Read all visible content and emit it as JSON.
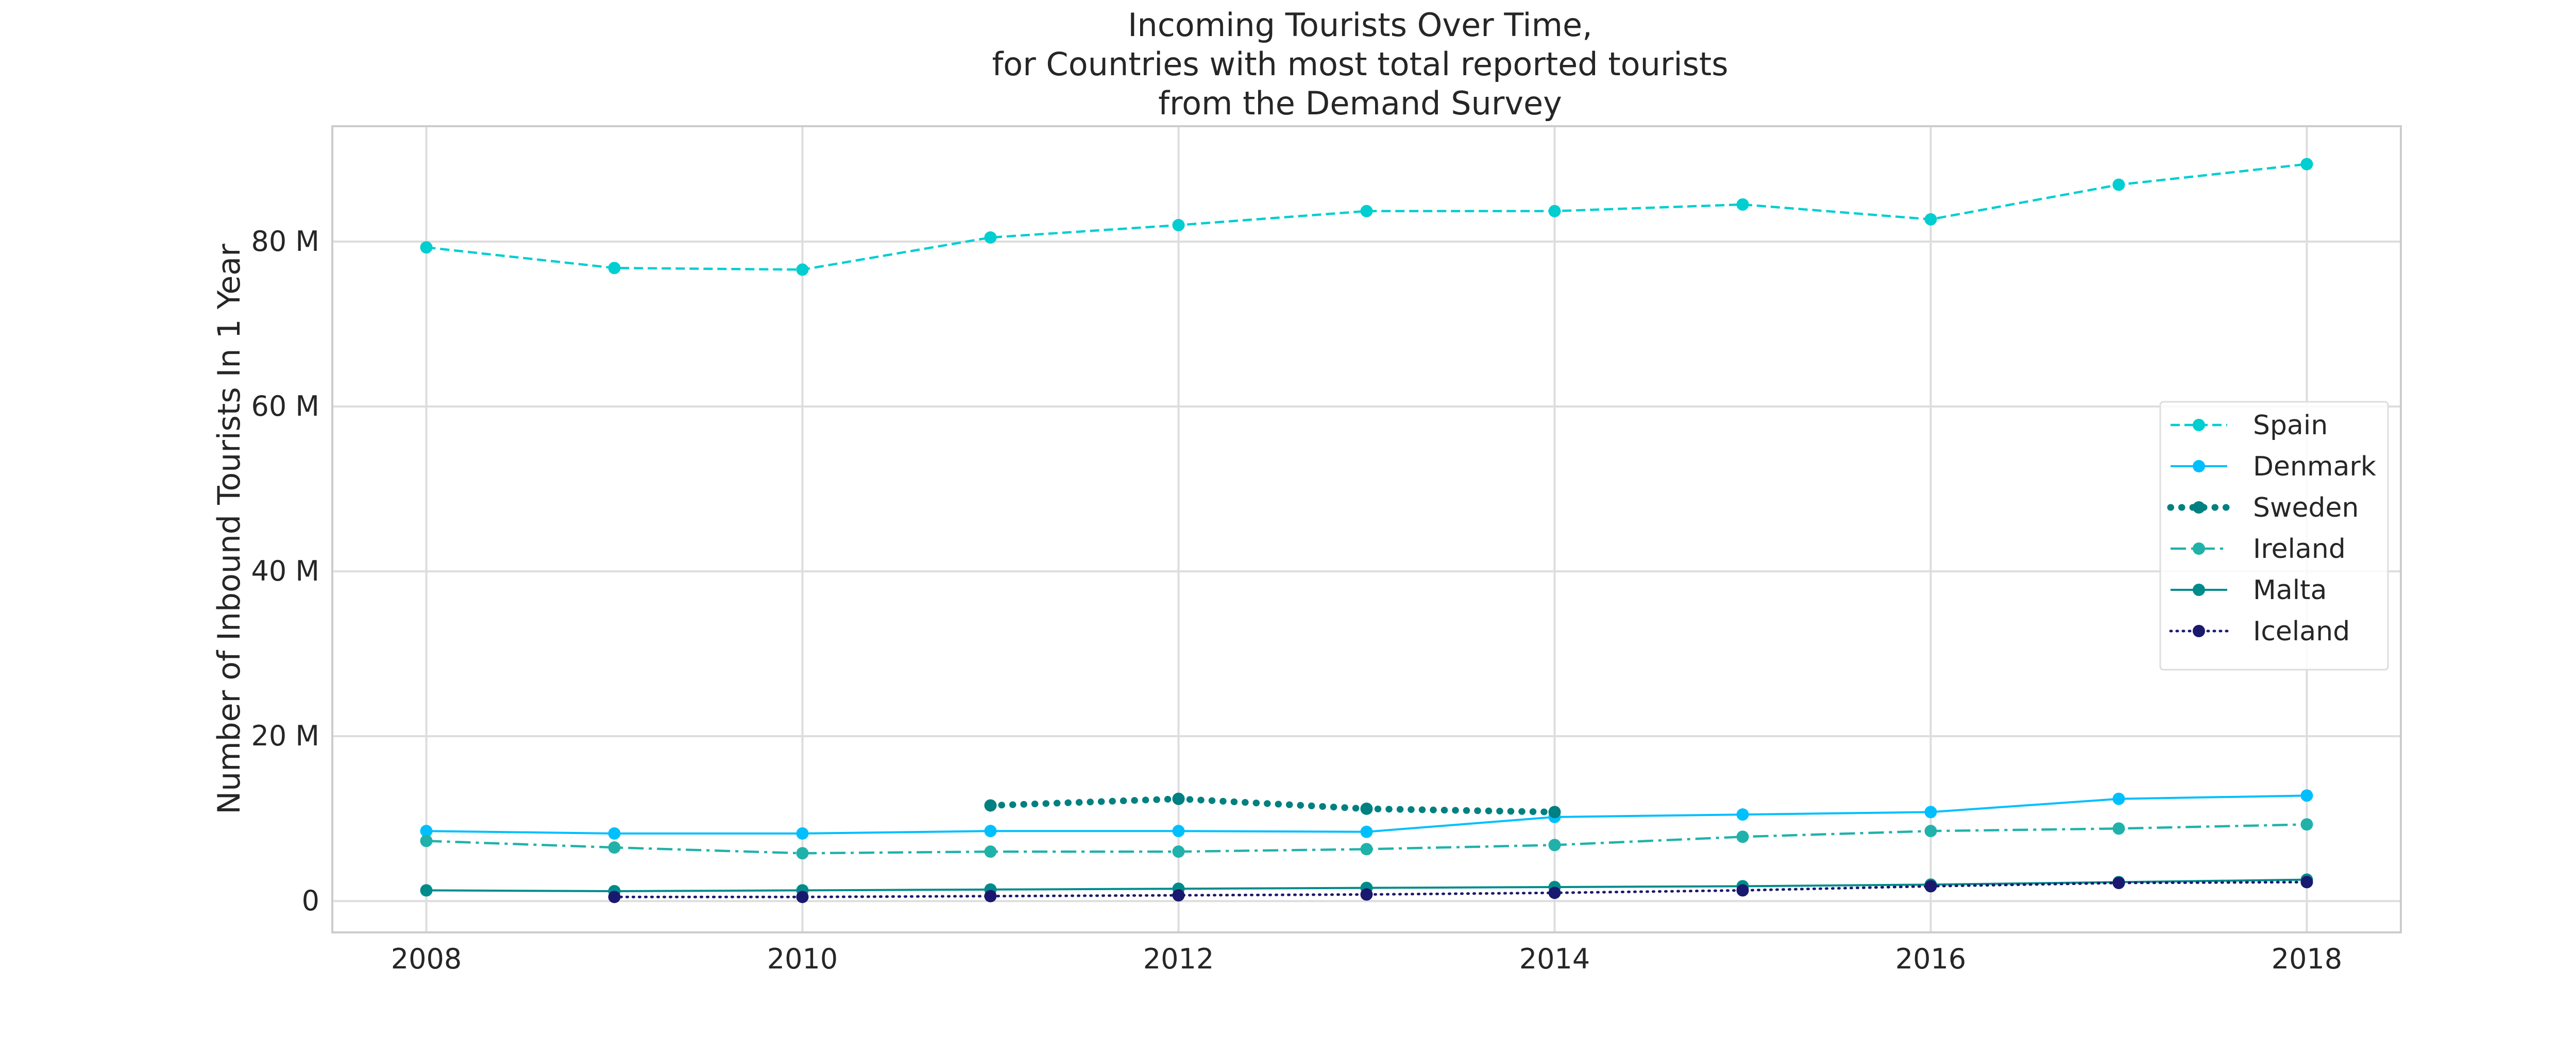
{
  "chart_data": {
    "type": "line",
    "title": [
      "Incoming Tourists Over Time,",
      "for Countries with most total reported tourists",
      "from the Demand Survey"
    ],
    "xlabel": "",
    "ylabel": "Number of Inbound Tourists In 1 Year",
    "xlim": [
      2007.5,
      2018.5
    ],
    "ylim": [
      -3800000,
      94000000
    ],
    "xticks": [
      2008,
      2010,
      2012,
      2014,
      2016,
      2018
    ],
    "xtick_labels": [
      "2008",
      "2010",
      "2012",
      "2014",
      "2016",
      "2018"
    ],
    "yticks": [
      0,
      20000000,
      40000000,
      60000000,
      80000000
    ],
    "ytick_labels": [
      "0",
      "20 M",
      "40 M",
      "60 M",
      "80 M"
    ],
    "grid": true,
    "legend_position": "center-right",
    "series": [
      {
        "name": "Spain",
        "color": "#00ced1",
        "linestyle": "dashed",
        "x": [
          2008,
          2009,
          2010,
          2011,
          2012,
          2013,
          2014,
          2015,
          2016,
          2017,
          2018
        ],
        "values": [
          79300000,
          76800000,
          76600000,
          80500000,
          82000000,
          83700000,
          83700000,
          84500000,
          82700000,
          86900000,
          89400000
        ]
      },
      {
        "name": "Denmark",
        "color": "#00bfff",
        "linestyle": "solid",
        "x": [
          2008,
          2009,
          2010,
          2011,
          2012,
          2013,
          2014,
          2015,
          2016,
          2017,
          2018
        ],
        "values": [
          8500000,
          8200000,
          8200000,
          8500000,
          8500000,
          8400000,
          10200000,
          10500000,
          10800000,
          12400000,
          12800000
        ]
      },
      {
        "name": "Sweden",
        "color": "#008080",
        "linestyle": "dotted-thick",
        "x": [
          2011,
          2012,
          2013,
          2014
        ],
        "values": [
          11600000,
          12400000,
          11200000,
          10800000
        ]
      },
      {
        "name": "Ireland",
        "color": "#20b2aa",
        "linestyle": "dashdot",
        "x": [
          2008,
          2009,
          2010,
          2011,
          2012,
          2013,
          2014,
          2015,
          2016,
          2017,
          2018
        ],
        "values": [
          7300000,
          6500000,
          5800000,
          6000000,
          6000000,
          6300000,
          6800000,
          7800000,
          8500000,
          8800000,
          9300000
        ]
      },
      {
        "name": "Malta",
        "color": "#008b8b",
        "linestyle": "solid",
        "x": [
          2008,
          2009,
          2010,
          2011,
          2012,
          2013,
          2014,
          2015,
          2016,
          2017,
          2018
        ],
        "values": [
          1300000,
          1200000,
          1300000,
          1400000,
          1500000,
          1600000,
          1700000,
          1800000,
          2000000,
          2300000,
          2600000
        ]
      },
      {
        "name": "Iceland",
        "color": "#191970",
        "linestyle": "dotted",
        "x": [
          2009,
          2010,
          2011,
          2012,
          2013,
          2014,
          2015,
          2016,
          2017,
          2018
        ],
        "values": [
          500000,
          500000,
          600000,
          700000,
          800000,
          1000000,
          1300000,
          1800000,
          2200000,
          2300000
        ]
      }
    ]
  }
}
